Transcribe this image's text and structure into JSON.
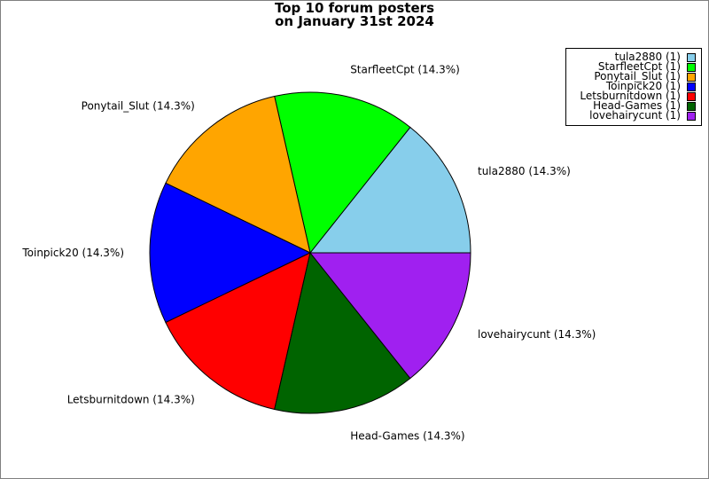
{
  "chart_data": {
    "type": "pie",
    "title": [
      "Top 10 forum posters",
      "on January 31st 2024"
    ],
    "slices": [
      {
        "label": "tula2880 (14.3%)",
        "legend": "tula2880 (1)",
        "value": 1,
        "color": "#87ceeb"
      },
      {
        "label": "StarfleetCpt (14.3%)",
        "legend": "StarfleetCpt (1)",
        "value": 1,
        "color": "#00ff00"
      },
      {
        "label": "Ponytail_Slut (14.3%)",
        "legend": "Ponytail_Slut (1)",
        "value": 1,
        "color": "#ffa500"
      },
      {
        "label": "Toinpick20 (14.3%)",
        "legend": "Toinpick20 (1)",
        "value": 1,
        "color": "#0000ff"
      },
      {
        "label": "Letsburnitdown (14.3%)",
        "legend": "Letsburnitdown (1)",
        "value": 1,
        "color": "#ff0000"
      },
      {
        "label": "Head-Games (14.3%)",
        "legend": "Head-Games (1)",
        "value": 1,
        "color": "#006400"
      },
      {
        "label": "lovehairycunt (14.3%)",
        "legend": "lovehairycunt (1)",
        "value": 1,
        "color": "#a020f0"
      }
    ],
    "legend_position": "top-right",
    "direction": "counterclockwise",
    "start": "east"
  }
}
